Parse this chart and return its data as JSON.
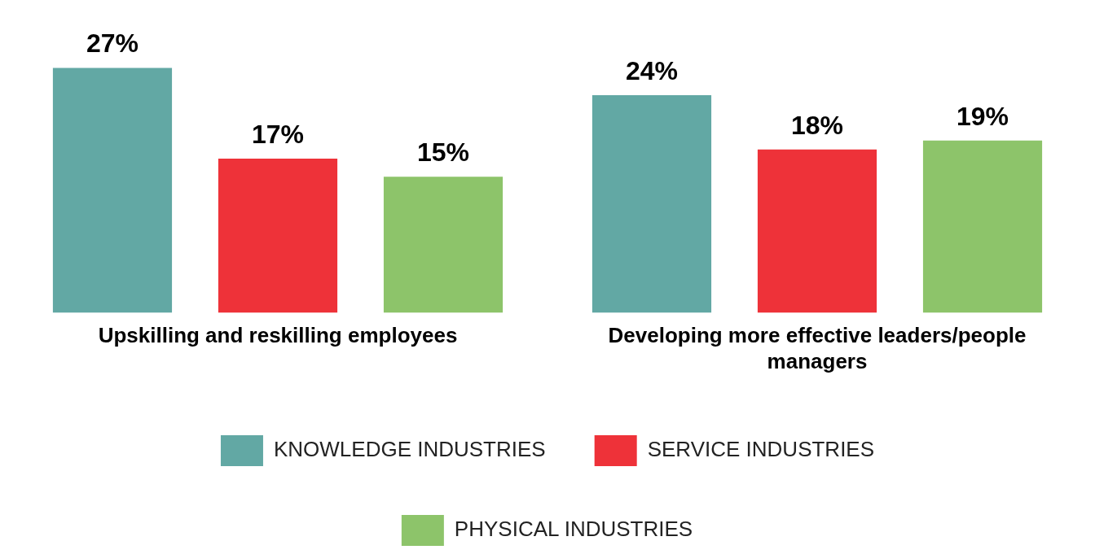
{
  "chart_data": {
    "type": "bar",
    "categories": [
      "Upskilling and reskilling employees",
      "Developing more effective leaders/people managers"
    ],
    "series": [
      {
        "name": "KNOWLEDGE INDUSTRIES",
        "color": "#62a8a4",
        "values": [
          27,
          24
        ],
        "value_labels": [
          "27%",
          "24%"
        ]
      },
      {
        "name": "SERVICE INDUSTRIES",
        "color": "#ee3239",
        "values": [
          17,
          18
        ],
        "value_labels": [
          "17%",
          "18%"
        ]
      },
      {
        "name": "PHYSICAL INDUSTRIES",
        "color": "#8dc46a",
        "values": [
          15,
          19
        ],
        "value_labels": [
          "15%",
          "19%"
        ]
      }
    ],
    "legend": "bottom",
    "grid": false
  }
}
